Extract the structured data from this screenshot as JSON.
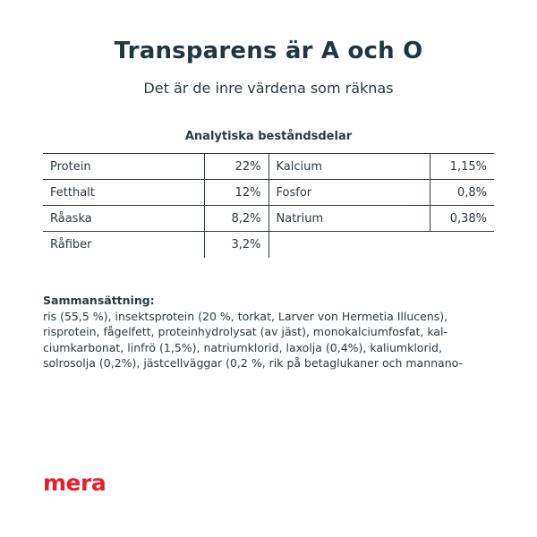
{
  "header": {
    "title": "Transparens är A och O",
    "subtitle": "Det är de inre värdena som räknas"
  },
  "analysis": {
    "heading": "Analytiska beståndsdelar",
    "rows": [
      {
        "name1": "Protein",
        "value1": "22%",
        "name2": "Kalcium",
        "value2": "1,15%"
      },
      {
        "name1": "Fetthalt",
        "value1": "12%",
        "name2": "Fosfor",
        "value2": "0,8%"
      },
      {
        "name1": "Råaska",
        "value1": "8,2%",
        "name2": "Natrium",
        "value2": "0,38%"
      },
      {
        "name1": "Råfiber",
        "value1": "3,2%"
      }
    ]
  },
  "composition": {
    "title": "Sammansättning:",
    "lines": [
      "ris (55,5 %), insektsprotein (20 %, torkat, Larver von Hermetia Illucens),",
      "risprotein, fågelfett, proteinhydrolysat (av jäst), monokalciumfosfat, kal-",
      "ciumkarbonat, linfrö (1,5%), natriumklorid, laxolja (0,4%), kaliumklorid,",
      "solrosolja (0,2%), jästcellväggar (0,2 %, rik på betaglukaner och mannano-"
    ]
  },
  "brand": {
    "logo_text": "mera",
    "color": "#e4202b"
  }
}
